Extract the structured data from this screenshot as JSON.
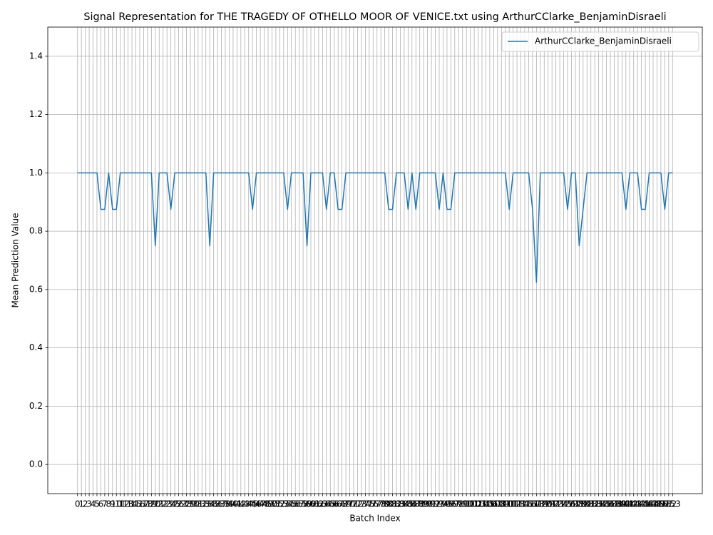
{
  "chart_data": {
    "type": "line",
    "title": "Signal Representation for THE TRAGEDY OF OTHELLO MOOR OF VENICE.txt using ArthurCClarke_BenjaminDisraeli",
    "xlabel": "Batch Index",
    "ylabel": "Mean Prediction Value",
    "x": [
      0,
      1,
      2,
      3,
      4,
      5,
      6,
      7,
      8,
      9,
      10,
      11,
      12,
      13,
      14,
      15,
      16,
      17,
      18,
      19,
      20,
      21,
      22,
      23,
      24,
      25,
      26,
      27,
      28,
      29,
      30,
      31,
      32,
      33,
      34,
      35,
      36,
      37,
      38,
      39,
      40,
      41,
      42,
      43,
      44,
      45,
      46,
      47,
      48,
      49,
      50,
      51,
      52,
      53,
      54,
      55,
      56,
      57,
      58,
      59,
      60,
      61,
      62,
      63,
      64,
      65,
      66,
      67,
      68,
      69,
      70,
      71,
      72,
      73,
      74,
      75,
      76,
      77,
      78,
      79,
      80,
      81,
      82,
      83,
      84,
      85,
      86,
      87,
      88,
      89,
      90,
      91,
      92,
      93,
      94,
      95,
      96,
      97,
      98,
      99,
      100,
      101,
      102,
      103,
      104,
      105,
      106,
      107,
      108,
      109,
      110,
      111,
      112,
      113,
      114,
      115,
      116,
      117,
      118,
      119,
      120,
      121,
      122,
      123,
      124,
      125,
      126,
      127,
      128,
      129,
      130,
      131,
      132,
      133,
      134,
      135,
      136,
      137,
      138,
      139,
      140,
      141,
      142,
      143,
      144,
      145,
      146,
      147,
      148,
      149,
      150,
      151,
      152,
      153
    ],
    "series": [
      {
        "name": "ArthurCClarke_BenjaminDisraeli",
        "color": "#1f77b4",
        "values": [
          1,
          1,
          1,
          1,
          1,
          1,
          0.875,
          0.875,
          1,
          0.875,
          0.875,
          1,
          1,
          1,
          1,
          1,
          1,
          1,
          1,
          1,
          0.75,
          1,
          1,
          1,
          0.875,
          1,
          1,
          1,
          1,
          1,
          1,
          1,
          1,
          1,
          0.75,
          1,
          1,
          1,
          1,
          1,
          1,
          1,
          1,
          1,
          1,
          0.875,
          1,
          1,
          1,
          1,
          1,
          1,
          1,
          1,
          0.875,
          1,
          1,
          1,
          1,
          0.75,
          1,
          1,
          1,
          1,
          0.875,
          1,
          1,
          0.875,
          0.875,
          1,
          1,
          1,
          1,
          1,
          1,
          1,
          1,
          1,
          1,
          1,
          0.875,
          0.875,
          1,
          1,
          1,
          0.875,
          1,
          0.875,
          1,
          1,
          1,
          1,
          1,
          0.875,
          1,
          0.875,
          0.875,
          1,
          1,
          1,
          1,
          1,
          1,
          1,
          1,
          1,
          1,
          1,
          1,
          1,
          1,
          0.875,
          1,
          1,
          1,
          1,
          1,
          0.875,
          0.625,
          1,
          1,
          1,
          1,
          1,
          1,
          1,
          0.875,
          1,
          1,
          0.75,
          0.875,
          1,
          1,
          1,
          1,
          1,
          1,
          1,
          1,
          1,
          1,
          0.875,
          1,
          1,
          1,
          0.875,
          0.875,
          1,
          1,
          1,
          1,
          0.875,
          1,
          1
        ]
      }
    ],
    "xlim": [
      -7.65,
      160.65
    ],
    "xticks": [
      0,
      1,
      2,
      3,
      4,
      5,
      6,
      7,
      8,
      9,
      10,
      11,
      12,
      13,
      14,
      15,
      16,
      17,
      18,
      19,
      20,
      21,
      22,
      23,
      24,
      25,
      26,
      27,
      28,
      29,
      30,
      31,
      32,
      33,
      34,
      35,
      36,
      37,
      38,
      39,
      40,
      41,
      42,
      43,
      44,
      45,
      46,
      47,
      48,
      49,
      50,
      51,
      52,
      53,
      54,
      55,
      56,
      57,
      58,
      59,
      60,
      61,
      62,
      63,
      64,
      65,
      66,
      67,
      68,
      69,
      70,
      71,
      72,
      73,
      74,
      75,
      76,
      77,
      78,
      79,
      80,
      81,
      82,
      83,
      84,
      85,
      86,
      87,
      88,
      89,
      90,
      91,
      92,
      93,
      94,
      95,
      96,
      97,
      98,
      99,
      100,
      101,
      102,
      103,
      104,
      105,
      106,
      107,
      108,
      109,
      110,
      111,
      112,
      113,
      114,
      115,
      116,
      117,
      118,
      119,
      120,
      121,
      122,
      123,
      124,
      125,
      126,
      127,
      128,
      129,
      130,
      131,
      132,
      133,
      134,
      135,
      136,
      137,
      138,
      139,
      140,
      141,
      142,
      143,
      144,
      145,
      146,
      147,
      148,
      149,
      150,
      151,
      152,
      153
    ],
    "ylim": [
      -0.1,
      1.5
    ],
    "yticks": [
      {
        "value": 0,
        "label": "0.0"
      },
      0.2,
      0.4,
      0.6,
      0.8,
      {
        "value": 1,
        "label": "1.0"
      },
      1.2,
      1.4
    ],
    "grid": true,
    "legend": "upper right"
  }
}
